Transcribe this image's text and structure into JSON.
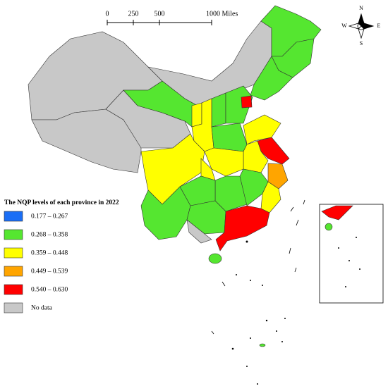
{
  "scale_bar": {
    "labels": [
      "0",
      "250",
      "500",
      "1000 Miles"
    ]
  },
  "compass": {
    "n": "N",
    "s": "S",
    "e": "E",
    "w": "W"
  },
  "legend": {
    "title": "The NQP levels of each province in 2022",
    "items": [
      {
        "label": "0.177 – 0.267",
        "color": "#1a6ef5"
      },
      {
        "label": "0.268 – 0.358",
        "color": "#55e630"
      },
      {
        "label": "0.359 – 0.448",
        "color": "#ffff00"
      },
      {
        "label": "0.449 – 0.539",
        "color": "#ffa500"
      },
      {
        "label": "0.540 – 0.630",
        "color": "#ff0000"
      },
      {
        "label": "No data",
        "color": "#c8c8c8"
      }
    ]
  }
}
